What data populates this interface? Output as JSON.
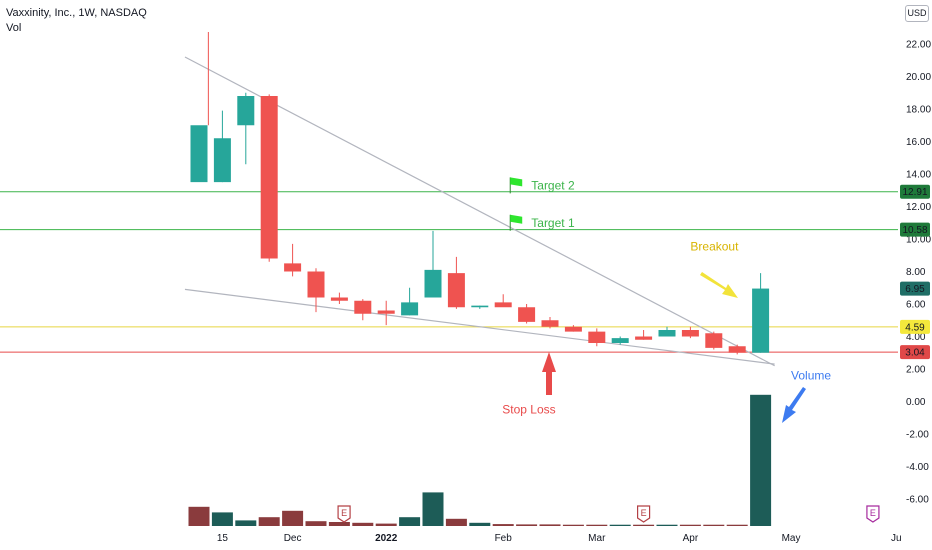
{
  "header": {
    "symbol_line": "Vaxxinity, Inc., 1W, NASDAQ",
    "indicator": "Vol",
    "currency": "USD"
  },
  "colors": {
    "up": "#26a69a",
    "down": "#ef5350",
    "up_volume": "#1d5c57",
    "down_volume": "#8a3b3d",
    "target_line": "#3bb44a",
    "entry_line": "#e6d540",
    "stop_line": "#e84a4a",
    "trend_line": "#b2b5be",
    "flag": "#2ee62e",
    "breakout_arrow": "#f2e33a",
    "stop_arrow": "#e84a4a",
    "volume_arrow": "#3d7bf0"
  },
  "chart_data": {
    "type": "candlestick",
    "title": "Vaxxinity, Inc., 1W, NASDAQ",
    "y_ticks": [
      "22.00",
      "20.00",
      "18.00",
      "16.00",
      "14.00",
      "12.00",
      "10.00",
      "8.00",
      "6.00",
      "4.00",
      "2.00",
      "0.00",
      "-2.00",
      "-4.00",
      "-6.00"
    ],
    "y_tick_values": [
      22,
      20,
      18,
      16,
      14,
      12,
      10,
      8,
      6,
      4,
      2,
      0,
      -2,
      -4,
      -6
    ],
    "ylim": [
      -7.8,
      23.5
    ],
    "x_ticks": [
      "15",
      "Dec",
      "2022",
      "Feb",
      "Mar",
      "Apr",
      "May",
      "Ju"
    ],
    "x_tick_weeks": [
      1,
      4,
      8,
      13,
      17,
      21,
      25.3,
      29.8
    ],
    "candles": [
      {
        "week": 0,
        "o": 13.5,
        "h": null,
        "l": null,
        "c": 17.0
      },
      {
        "week": 1,
        "o": 13.5,
        "h": 17.9,
        "l": 13.5,
        "c": 16.2
      },
      {
        "week": 2,
        "o": 17.0,
        "h": 19.0,
        "l": 14.6,
        "c": 18.8
      },
      {
        "week": 3,
        "o": 18.8,
        "h": 18.9,
        "l": 8.6,
        "c": 8.8
      },
      {
        "week": 4,
        "o": 8.5,
        "h": 9.7,
        "l": 7.7,
        "c": 8.0
      },
      {
        "week": 5,
        "o": 8.0,
        "h": 8.2,
        "l": 5.5,
        "c": 6.4
      },
      {
        "week": 6,
        "o": 6.4,
        "h": 6.7,
        "l": 6.0,
        "c": 6.2
      },
      {
        "week": 7,
        "o": 6.2,
        "h": 6.3,
        "l": 5.0,
        "c": 5.4
      },
      {
        "week": 8,
        "o": 5.6,
        "h": 6.2,
        "l": 4.7,
        "c": 5.4
      },
      {
        "week": 9,
        "o": 5.3,
        "h": 7.0,
        "l": 5.3,
        "c": 6.1
      },
      {
        "week": 10,
        "o": 6.4,
        "h": 10.5,
        "l": 6.4,
        "c": 8.1
      },
      {
        "week": 11,
        "o": 7.9,
        "h": 8.9,
        "l": 5.7,
        "c": 5.8
      },
      {
        "week": 12,
        "o": 5.8,
        "h": 5.9,
        "l": 5.7,
        "c": 5.9
      },
      {
        "week": 13,
        "o": 6.1,
        "h": 6.6,
        "l": 5.9,
        "c": 5.8
      },
      {
        "week": 14,
        "o": 5.8,
        "h": 6.0,
        "l": 4.8,
        "c": 4.9
      },
      {
        "week": 15,
        "o": 5.0,
        "h": 5.2,
        "l": 4.5,
        "c": 4.6
      },
      {
        "week": 16,
        "o": 4.6,
        "h": 4.7,
        "l": 4.3,
        "c": 4.3
      },
      {
        "week": 17,
        "o": 4.3,
        "h": 4.5,
        "l": 3.4,
        "c": 3.6
      },
      {
        "week": 18,
        "o": 3.6,
        "h": 4.0,
        "l": 3.5,
        "c": 3.9
      },
      {
        "week": 19,
        "o": 4.0,
        "h": 4.4,
        "l": 3.8,
        "c": 3.8
      },
      {
        "week": 20,
        "o": 4.0,
        "h": 4.6,
        "l": 4.0,
        "c": 4.4
      },
      {
        "week": 21,
        "o": 4.4,
        "h": 4.6,
        "l": 3.9,
        "c": 4.0
      },
      {
        "week": 22,
        "o": 4.2,
        "h": 4.3,
        "l": 3.2,
        "c": 3.3
      },
      {
        "week": 23,
        "o": 3.4,
        "h": 3.5,
        "l": 2.9,
        "c": 3.0
      },
      {
        "week": 24,
        "o": 3.0,
        "h": 7.9,
        "l": 3.0,
        "c": 6.95
      }
    ],
    "volume_indexed": [
      {
        "week": 0,
        "v": 1.2,
        "dir": "down"
      },
      {
        "week": 1,
        "v": 0.85,
        "dir": "up"
      },
      {
        "week": 2,
        "v": 0.35,
        "dir": "up"
      },
      {
        "week": 3,
        "v": 0.55,
        "dir": "down"
      },
      {
        "week": 4,
        "v": 0.95,
        "dir": "down"
      },
      {
        "week": 5,
        "v": 0.3,
        "dir": "down"
      },
      {
        "week": 6,
        "v": 0.25,
        "dir": "down"
      },
      {
        "week": 7,
        "v": 0.2,
        "dir": "down"
      },
      {
        "week": 8,
        "v": 0.15,
        "dir": "down"
      },
      {
        "week": 9,
        "v": 0.55,
        "dir": "up"
      },
      {
        "week": 10,
        "v": 2.1,
        "dir": "up"
      },
      {
        "week": 11,
        "v": 0.45,
        "dir": "down"
      },
      {
        "week": 12,
        "v": 0.2,
        "dir": "up"
      },
      {
        "week": 13,
        "v": 0.12,
        "dir": "down"
      },
      {
        "week": 14,
        "v": 0.1,
        "dir": "down"
      },
      {
        "week": 15,
        "v": 0.1,
        "dir": "down"
      },
      {
        "week": 16,
        "v": 0.08,
        "dir": "down"
      },
      {
        "week": 17,
        "v": 0.08,
        "dir": "down"
      },
      {
        "week": 18,
        "v": 0.08,
        "dir": "up"
      },
      {
        "week": 19,
        "v": 0.08,
        "dir": "down"
      },
      {
        "week": 20,
        "v": 0.08,
        "dir": "up"
      },
      {
        "week": 21,
        "v": 0.08,
        "dir": "down"
      },
      {
        "week": 22,
        "v": 0.08,
        "dir": "down"
      },
      {
        "week": 23,
        "v": 0.08,
        "dir": "down"
      },
      {
        "week": 24,
        "v": 8.2,
        "dir": "up"
      }
    ],
    "price_levels": [
      {
        "value": 12.91,
        "label": "12.91",
        "role": "target"
      },
      {
        "value": 10.58,
        "label": "10.58",
        "role": "target"
      },
      {
        "value": 6.95,
        "label": "6.95",
        "role": "price"
      },
      {
        "value": 4.59,
        "label": "4.59",
        "role": "entry"
      },
      {
        "value": 3.04,
        "label": "3.04",
        "role": "stop"
      }
    ],
    "trend_lines": [
      {
        "from": {
          "week": -0.6,
          "price": 21.2
        },
        "to": {
          "week": 24.6,
          "price": 2.2
        }
      },
      {
        "from": {
          "week": -0.6,
          "price": 6.9
        },
        "to": {
          "week": 24.6,
          "price": 2.3
        }
      }
    ],
    "annotations": {
      "target2": {
        "text": "Target 2",
        "week": 14.2,
        "price": 13.3
      },
      "target1": {
        "text": "Target 1",
        "week": 14.2,
        "price": 11.0
      },
      "breakout": {
        "text": "Breakout",
        "week": 21.0,
        "price": 9.3
      },
      "stop_loss": {
        "text": "Stop Loss",
        "week": 14.1,
        "price": -0.5
      },
      "volume": {
        "text": "Volume",
        "week": 25.3,
        "price": 1.6
      }
    },
    "event_badges": [
      {
        "week": 6.2,
        "label": "E",
        "color": "#b34045"
      },
      {
        "week": 19.0,
        "label": "E",
        "color": "#b34045"
      },
      {
        "week": 28.8,
        "label": "E",
        "color": "#a62b9e"
      }
    ]
  }
}
